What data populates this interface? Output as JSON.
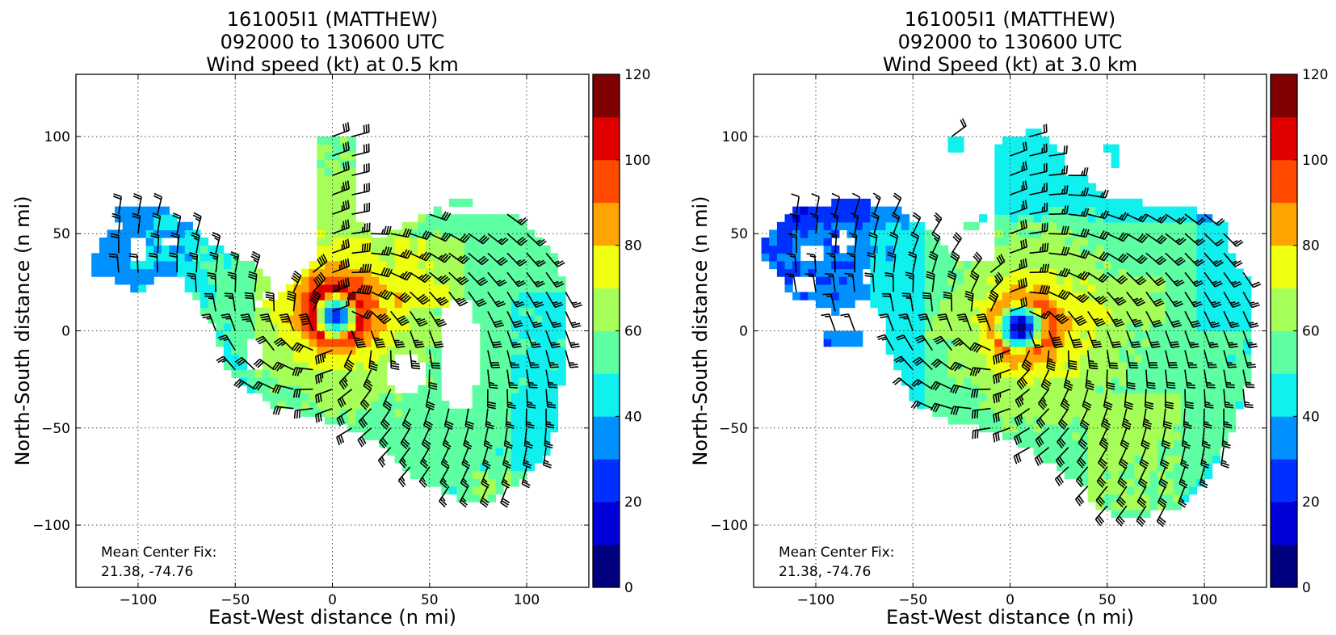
{
  "chart_data": [
    {
      "type": "heatmap",
      "title": [
        "161005I1 (MATTHEW)",
        "092000 to 130600 UTC",
        "Wind speed (kt) at 0.5 km"
      ],
      "xlabel": "East-West distance (n mi)",
      "ylabel": "North-South distance (n mi)",
      "xlim": [
        -132,
        132
      ],
      "ylim": [
        -132,
        132
      ],
      "xticks": [
        -100,
        -50,
        0,
        50,
        100
      ],
      "yticks": [
        -100,
        -50,
        0,
        50,
        100
      ],
      "tick_labels": [
        "−100",
        "−50",
        "0",
        "50",
        "100"
      ],
      "grid": true,
      "colorbar": {
        "range": [
          0,
          120
        ],
        "step": 10,
        "ticks": [
          0,
          20,
          40,
          60,
          80,
          100,
          120
        ]
      },
      "annotation": {
        "line1": "Mean Center Fix:",
        "line2": "21.38, -74.76"
      },
      "center": [
        0,
        0
      ],
      "peak_wind_kt": 105,
      "rmw_nmi": 13,
      "overlay": "wind barbs"
    },
    {
      "type": "heatmap",
      "title": [
        "161005I1 (MATTHEW)",
        "092000 to 130600 UTC",
        "Wind Speed (kt) at 3.0 km"
      ],
      "xlabel": "East-West distance (n mi)",
      "ylabel": "North-South distance (n mi)",
      "xlim": [
        -132,
        132
      ],
      "ylim": [
        -132,
        132
      ],
      "xticks": [
        -100,
        -50,
        0,
        50,
        100
      ],
      "yticks": [
        -100,
        -50,
        0,
        50,
        100
      ],
      "tick_labels": [
        "−100",
        "−50",
        "0",
        "50",
        "100"
      ],
      "grid": true,
      "colorbar": {
        "range": [
          0,
          120
        ],
        "step": 10,
        "ticks": [
          0,
          20,
          40,
          60,
          80,
          100,
          120
        ]
      },
      "annotation": {
        "line1": "Mean Center Fix:",
        "line2": "21.38, -74.76"
      },
      "center": [
        0,
        0
      ],
      "peak_wind_kt": 95,
      "rmw_nmi": 14,
      "overlay": "wind barbs"
    }
  ],
  "colormap": [
    "#00007f",
    "#0000d8",
    "#0030ff",
    "#0090ff",
    "#10f0ef",
    "#5dffa2",
    "#a6ff59",
    "#eeff10",
    "#ffa400",
    "#ff4a00",
    "#e00000",
    "#7f0000"
  ]
}
